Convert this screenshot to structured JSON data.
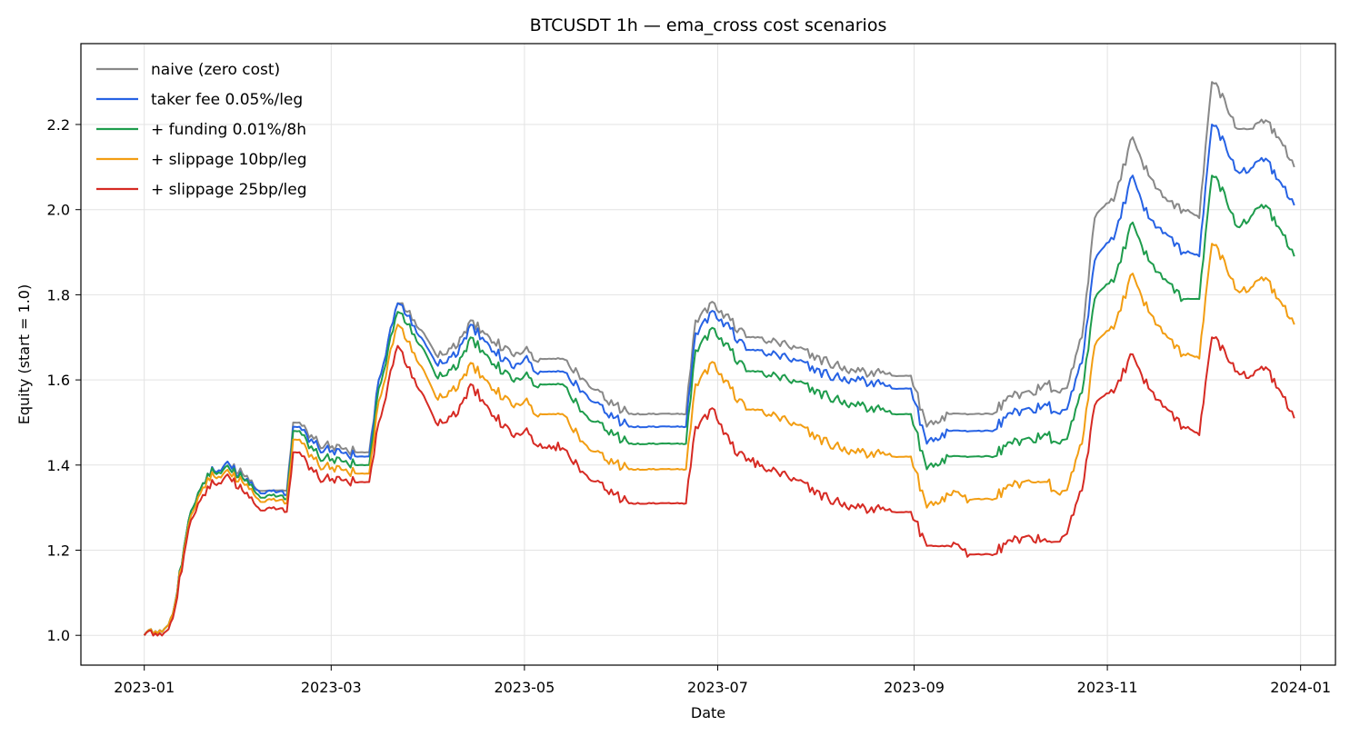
{
  "chart_data": {
    "type": "line",
    "title": "BTCUSDT 1h — ema_cross cost scenarios",
    "xlabel": "Date",
    "ylabel": "Equity (start = 1.0)",
    "xlim": [
      "2022-12-12",
      "2024-01-12"
    ],
    "ylim": [
      0.93,
      2.39
    ],
    "x_ticks": [
      "2023-01-01",
      "2023-03-01",
      "2023-05-01",
      "2023-07-01",
      "2023-09-01",
      "2023-11-01",
      "2024-01-01"
    ],
    "x_tick_labels": [
      "2023-01",
      "2023-03",
      "2023-05",
      "2023-07",
      "2023-09",
      "2023-11",
      "2024-01"
    ],
    "y_ticks": [
      1.0,
      1.2,
      1.4,
      1.6,
      1.8,
      2.0,
      2.2
    ],
    "y_tick_labels": [
      "1.0",
      "1.2",
      "1.4",
      "1.6",
      "1.8",
      "2.0",
      "2.2"
    ],
    "grid": true,
    "legend_position": "upper left",
    "x": [
      "2023-01-01",
      "2023-01-08",
      "2023-01-10",
      "2023-01-15",
      "2023-01-21",
      "2023-01-28",
      "2023-02-01",
      "2023-02-06",
      "2023-02-15",
      "2023-02-17",
      "2023-02-19",
      "2023-02-25",
      "2023-03-10",
      "2023-03-13",
      "2023-03-16",
      "2023-03-22",
      "2023-03-25",
      "2023-03-31",
      "2023-04-03",
      "2023-04-10",
      "2023-04-14",
      "2023-04-20",
      "2023-04-27",
      "2023-05-01",
      "2023-05-06",
      "2023-05-13",
      "2023-05-20",
      "2023-05-27",
      "2023-06-03",
      "2023-06-10",
      "2023-06-17",
      "2023-06-21",
      "2023-06-24",
      "2023-06-30",
      "2023-07-05",
      "2023-07-10",
      "2023-07-15",
      "2023-07-25",
      "2023-08-05",
      "2023-08-15",
      "2023-08-25",
      "2023-08-31",
      "2023-09-05",
      "2023-09-12",
      "2023-09-20",
      "2023-09-25",
      "2023-10-02",
      "2023-10-08",
      "2023-10-13",
      "2023-10-17",
      "2023-10-20",
      "2023-10-24",
      "2023-10-28",
      "2023-11-03",
      "2023-11-09",
      "2023-11-14",
      "2023-11-20",
      "2023-11-25",
      "2023-11-30",
      "2023-12-04",
      "2023-12-08",
      "2023-12-12",
      "2023-12-17",
      "2023-12-21",
      "2023-12-25",
      "2023-12-30"
    ],
    "series": [
      {
        "name": "naive (zero cost)",
        "color": "#888888",
        "values": [
          1.0,
          1.02,
          1.05,
          1.27,
          1.38,
          1.4,
          1.38,
          1.34,
          1.34,
          1.5,
          1.5,
          1.45,
          1.43,
          1.43,
          1.6,
          1.78,
          1.76,
          1.7,
          1.66,
          1.68,
          1.74,
          1.7,
          1.66,
          1.67,
          1.65,
          1.65,
          1.6,
          1.55,
          1.52,
          1.52,
          1.52,
          1.52,
          1.74,
          1.78,
          1.74,
          1.7,
          1.7,
          1.68,
          1.64,
          1.62,
          1.61,
          1.61,
          1.49,
          1.52,
          1.52,
          1.52,
          1.56,
          1.57,
          1.59,
          1.57,
          1.6,
          1.7,
          1.98,
          2.02,
          2.17,
          2.08,
          2.02,
          2.0,
          1.98,
          2.3,
          2.26,
          2.19,
          2.19,
          2.21,
          2.17,
          2.1
        ]
      },
      {
        "name": "taker fee 0.05%/leg",
        "color": "#2662e4",
        "values": [
          1.0,
          1.02,
          1.05,
          1.27,
          1.38,
          1.4,
          1.37,
          1.34,
          1.33,
          1.49,
          1.49,
          1.44,
          1.42,
          1.42,
          1.6,
          1.78,
          1.75,
          1.68,
          1.64,
          1.66,
          1.73,
          1.68,
          1.63,
          1.65,
          1.62,
          1.62,
          1.57,
          1.52,
          1.49,
          1.49,
          1.49,
          1.49,
          1.71,
          1.76,
          1.72,
          1.67,
          1.67,
          1.65,
          1.61,
          1.6,
          1.58,
          1.58,
          1.45,
          1.48,
          1.48,
          1.48,
          1.52,
          1.53,
          1.54,
          1.52,
          1.55,
          1.64,
          1.88,
          1.93,
          2.08,
          1.98,
          1.94,
          1.9,
          1.89,
          2.2,
          2.16,
          2.09,
          2.1,
          2.12,
          2.07,
          2.01
        ]
      },
      {
        "name": "+ funding 0.01%/8h",
        "color": "#1e9c4c",
        "values": [
          1.0,
          1.02,
          1.05,
          1.27,
          1.38,
          1.39,
          1.37,
          1.33,
          1.32,
          1.48,
          1.48,
          1.42,
          1.4,
          1.4,
          1.58,
          1.76,
          1.73,
          1.66,
          1.61,
          1.63,
          1.7,
          1.65,
          1.6,
          1.61,
          1.59,
          1.59,
          1.52,
          1.48,
          1.45,
          1.45,
          1.45,
          1.45,
          1.67,
          1.72,
          1.67,
          1.62,
          1.62,
          1.6,
          1.56,
          1.54,
          1.52,
          1.52,
          1.39,
          1.42,
          1.42,
          1.42,
          1.45,
          1.46,
          1.47,
          1.45,
          1.48,
          1.57,
          1.79,
          1.83,
          1.97,
          1.88,
          1.83,
          1.79,
          1.79,
          2.08,
          2.04,
          1.96,
          1.99,
          2.01,
          1.96,
          1.89
        ]
      },
      {
        "name": "+ slippage 10bp/leg",
        "color": "#f29d12",
        "values": [
          1.0,
          1.02,
          1.05,
          1.26,
          1.37,
          1.38,
          1.36,
          1.32,
          1.31,
          1.46,
          1.46,
          1.4,
          1.38,
          1.38,
          1.55,
          1.73,
          1.69,
          1.61,
          1.56,
          1.58,
          1.64,
          1.59,
          1.54,
          1.55,
          1.52,
          1.52,
          1.45,
          1.41,
          1.39,
          1.39,
          1.39,
          1.39,
          1.59,
          1.64,
          1.58,
          1.53,
          1.53,
          1.5,
          1.45,
          1.43,
          1.42,
          1.42,
          1.3,
          1.33,
          1.32,
          1.32,
          1.35,
          1.36,
          1.36,
          1.33,
          1.36,
          1.45,
          1.68,
          1.72,
          1.85,
          1.76,
          1.7,
          1.66,
          1.65,
          1.92,
          1.88,
          1.81,
          1.82,
          1.84,
          1.79,
          1.73
        ]
      },
      {
        "name": "+ slippage 25bp/leg",
        "color": "#d62a23",
        "values": [
          1.0,
          1.01,
          1.04,
          1.25,
          1.35,
          1.37,
          1.34,
          1.3,
          1.29,
          1.43,
          1.43,
          1.37,
          1.36,
          1.36,
          1.5,
          1.68,
          1.63,
          1.55,
          1.5,
          1.52,
          1.59,
          1.53,
          1.47,
          1.48,
          1.45,
          1.44,
          1.38,
          1.34,
          1.31,
          1.31,
          1.31,
          1.31,
          1.49,
          1.53,
          1.45,
          1.41,
          1.4,
          1.37,
          1.32,
          1.3,
          1.29,
          1.29,
          1.21,
          1.21,
          1.19,
          1.19,
          1.22,
          1.23,
          1.22,
          1.22,
          1.26,
          1.34,
          1.54,
          1.57,
          1.66,
          1.58,
          1.53,
          1.49,
          1.47,
          1.7,
          1.67,
          1.62,
          1.61,
          1.63,
          1.58,
          1.51
        ]
      }
    ]
  }
}
